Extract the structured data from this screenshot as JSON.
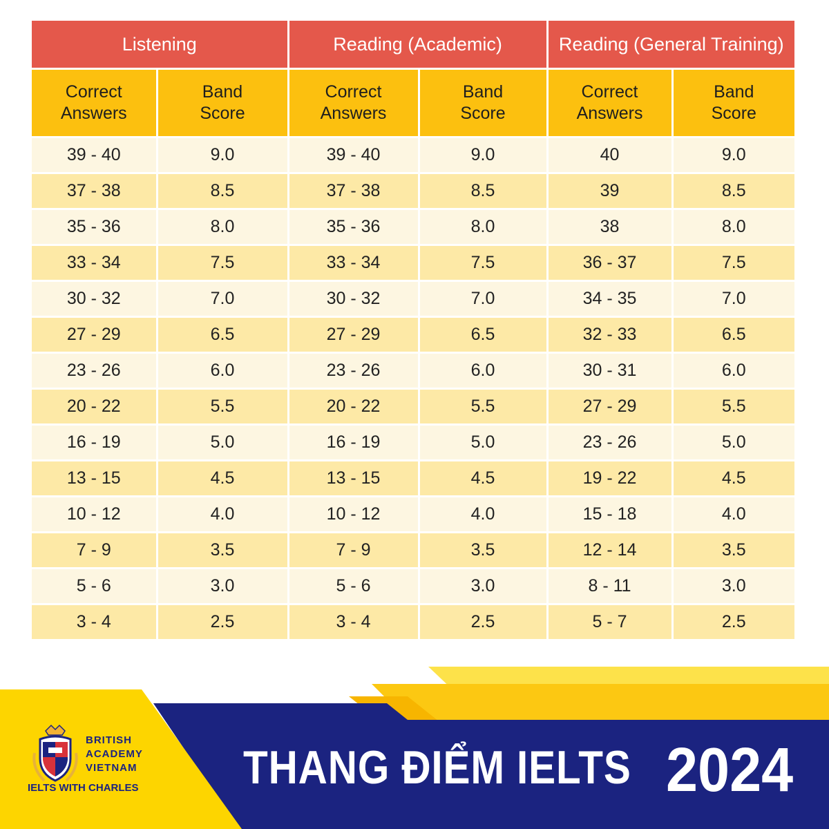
{
  "sections": [
    {
      "label": "Listening"
    },
    {
      "label": "Reading (Academic)"
    },
    {
      "label": "Reading (General Training)"
    }
  ],
  "column_headers": {
    "correct_line1": "Correct",
    "correct_line2": "Answers",
    "band_line1": "Band",
    "band_line2": "Score"
  },
  "rows": [
    {
      "l_correct": "39 - 40",
      "l_band": "9.0",
      "a_correct": "39 - 40",
      "a_band": "9.0",
      "g_correct": "40",
      "g_band": "9.0"
    },
    {
      "l_correct": "37 - 38",
      "l_band": "8.5",
      "a_correct": "37 - 38",
      "a_band": "8.5",
      "g_correct": "39",
      "g_band": "8.5"
    },
    {
      "l_correct": "35 - 36",
      "l_band": "8.0",
      "a_correct": "35 - 36",
      "a_band": "8.0",
      "g_correct": "38",
      "g_band": "8.0"
    },
    {
      "l_correct": "33 - 34",
      "l_band": "7.5",
      "a_correct": "33 - 34",
      "a_band": "7.5",
      "g_correct": "36 - 37",
      "g_band": "7.5"
    },
    {
      "l_correct": "30 - 32",
      "l_band": "7.0",
      "a_correct": "30 - 32",
      "a_band": "7.0",
      "g_correct": "34 - 35",
      "g_band": "7.0"
    },
    {
      "l_correct": "27 - 29",
      "l_band": "6.5",
      "a_correct": "27 - 29",
      "a_band": "6.5",
      "g_correct": "32 - 33",
      "g_band": "6.5"
    },
    {
      "l_correct": "23 - 26",
      "l_band": "6.0",
      "a_correct": "23 - 26",
      "a_band": "6.0",
      "g_correct": "30 - 31",
      "g_band": "6.0"
    },
    {
      "l_correct": "20 - 22",
      "l_band": "5.5",
      "a_correct": "20 - 22",
      "a_band": "5.5",
      "g_correct": "27 - 29",
      "g_band": "5.5"
    },
    {
      "l_correct": "16 - 19",
      "l_band": "5.0",
      "a_correct": "16 - 19",
      "a_band": "5.0",
      "g_correct": "23 - 26",
      "g_band": "5.0"
    },
    {
      "l_correct": "13 - 15",
      "l_band": "4.5",
      "a_correct": "13 - 15",
      "a_band": "4.5",
      "g_correct": "19 - 22",
      "g_band": "4.5"
    },
    {
      "l_correct": "10 - 12",
      "l_band": "4.0",
      "a_correct": "10 - 12",
      "a_band": "4.0",
      "g_correct": "15 - 18",
      "g_band": "4.0"
    },
    {
      "l_correct": "7 - 9",
      "l_band": "3.5",
      "a_correct": "7 - 9",
      "a_band": "3.5",
      "g_correct": "12 - 14",
      "g_band": "3.5"
    },
    {
      "l_correct": "5 - 6",
      "l_band": "3.0",
      "a_correct": "5 - 6",
      "a_band": "3.0",
      "g_correct": "8 - 11",
      "g_band": "3.0"
    },
    {
      "l_correct": "3 - 4",
      "l_band": "2.5",
      "a_correct": "3 - 4",
      "a_band": "2.5",
      "g_correct": "5 - 7",
      "g_band": "2.5"
    }
  ],
  "logo": {
    "line1": "BRITISH",
    "line2": "ACADEMY",
    "line3": "VIETNAM",
    "tagline": "IELTS WITH CHARLES",
    "icon": "crest-shield-icon"
  },
  "banner": {
    "title": "THANG ĐIỂM IELTS",
    "year": "2024"
  },
  "colors": {
    "section_header": "#e4584b",
    "sub_header": "#fcc00f",
    "row_light": "#fdf6e1",
    "row_dark": "#fde9a6",
    "navy": "#1b2380",
    "yellow": "#fcd000"
  }
}
